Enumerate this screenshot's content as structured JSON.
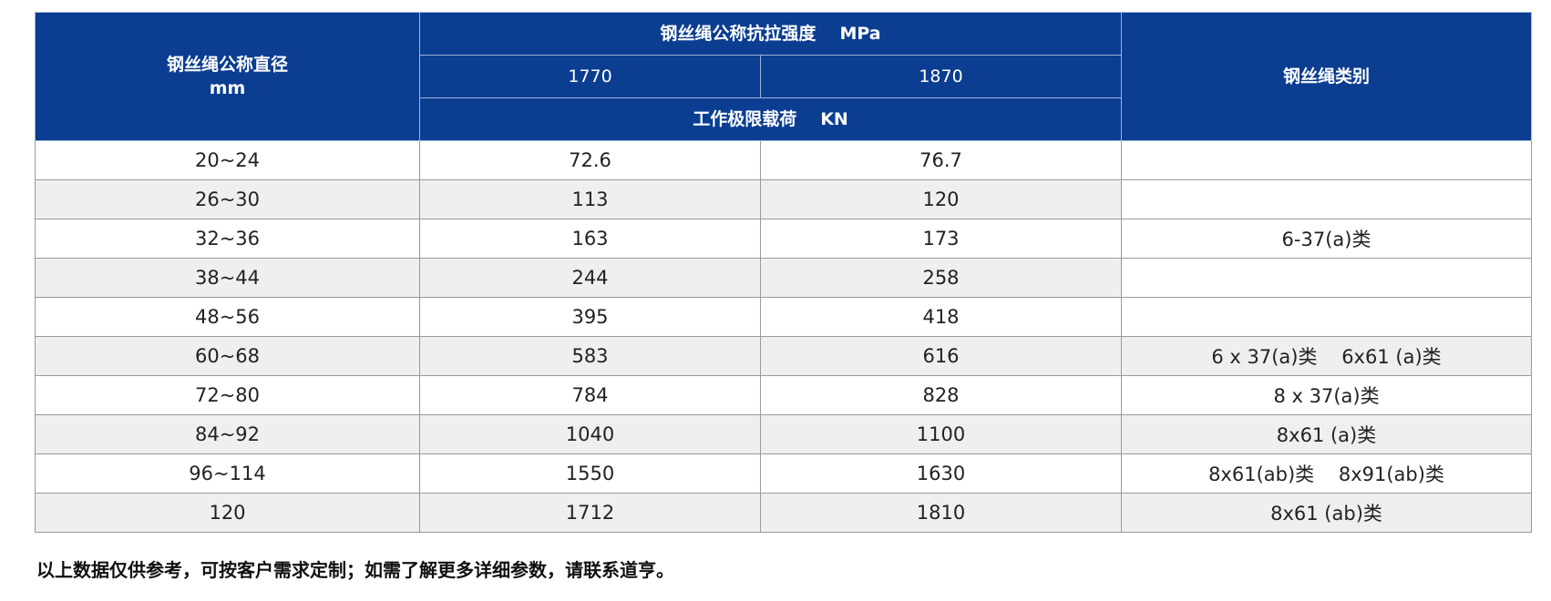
{
  "header": {
    "diameter_label": "钢丝绳公称直径",
    "diameter_unit": "mm",
    "strength_label": "钢丝绳公称抗拉强度",
    "strength_unit": "MPa",
    "strength_1": "1770",
    "strength_2": "1870",
    "load_label": "工作极限载荷",
    "load_unit": "KN",
    "type_label": "钢丝绳类别"
  },
  "rows": [
    {
      "diameter": "20~24",
      "load_1770": "72.6",
      "load_1870": "76.7",
      "type": ""
    },
    {
      "diameter": "26~30",
      "load_1770": "113",
      "load_1870": "120",
      "type": ""
    },
    {
      "diameter": "32~36",
      "load_1770": "163",
      "load_1870": "173",
      "type": "6-37(a)类"
    },
    {
      "diameter": "38~44",
      "load_1770": "244",
      "load_1870": "258",
      "type": ""
    },
    {
      "diameter": "48~56",
      "load_1770": "395",
      "load_1870": "418",
      "type": ""
    },
    {
      "diameter": "60~68",
      "load_1770": "583",
      "load_1870": "616",
      "type": "6 x 37(a)类    6x61 (a)类"
    },
    {
      "diameter": "72~80",
      "load_1770": "784",
      "load_1870": "828",
      "type": "8 x 37(a)类"
    },
    {
      "diameter": "84~92",
      "load_1770": "1040",
      "load_1870": "1100",
      "type": "8x61 (a)类"
    },
    {
      "diameter": "96~114",
      "load_1770": "1550",
      "load_1870": "1630",
      "type": "8x61(ab)类    8x91(ab)类"
    },
    {
      "diameter": "120",
      "load_1770": "1712",
      "load_1870": "1810",
      "type": "8x61 (ab)类"
    }
  ],
  "note": "以上数据仅供参考，可按客户需求定制；如需了解更多详细参数，请联系道亨。"
}
